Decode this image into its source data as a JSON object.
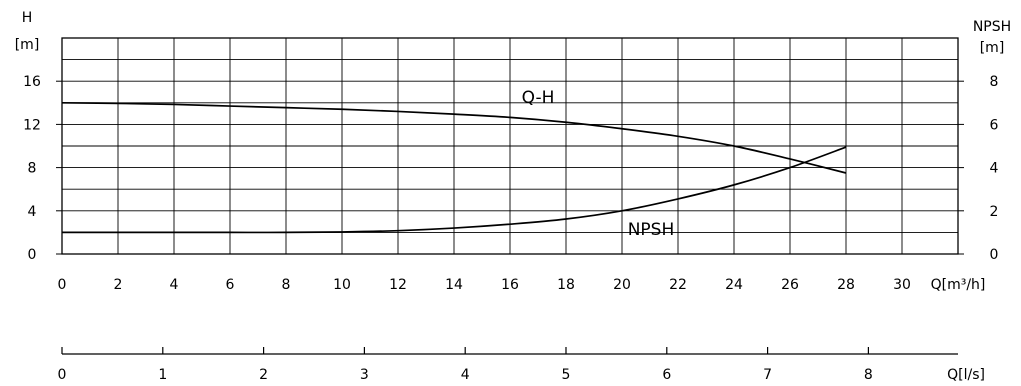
{
  "chart_data": {
    "type": "line",
    "left_axis": {
      "label_line1": "H",
      "label_line2": "[m]",
      "ticks": [
        0,
        4,
        8,
        12,
        16
      ],
      "ylim": [
        0,
        20
      ]
    },
    "right_axis": {
      "label_line1": "NPSH",
      "label_line2": "[m]",
      "ticks": [
        0,
        2,
        4,
        6,
        8
      ],
      "ylim": [
        0,
        10
      ]
    },
    "x_axis": {
      "label": "Q[m³/h]",
      "ticks": [
        0,
        2,
        4,
        6,
        8,
        10,
        12,
        14,
        16,
        18,
        20,
        22,
        24,
        26,
        28,
        30
      ],
      "xlim": [
        0,
        32
      ]
    },
    "secondary_x_axis": {
      "label": "Q[l/s]",
      "ticks": [
        0,
        1,
        2,
        3,
        4,
        5,
        6,
        7,
        8
      ],
      "xlim": [
        0,
        8.889
      ]
    },
    "grid": true,
    "series": [
      {
        "name": "Q-H",
        "axis": "left",
        "x": [
          0,
          2,
          4,
          6,
          8,
          10,
          12,
          14,
          16,
          18,
          20,
          22,
          24,
          26,
          28
        ],
        "y": [
          14.0,
          13.95,
          13.85,
          13.7,
          13.55,
          13.4,
          13.2,
          12.95,
          12.65,
          12.2,
          11.6,
          10.9,
          10.0,
          8.8,
          7.5
        ]
      },
      {
        "name": "NPSH",
        "axis": "right",
        "x": [
          0,
          2,
          4,
          6,
          8,
          10,
          12,
          14,
          16,
          18,
          20,
          22,
          24,
          26,
          28
        ],
        "y": [
          1.0,
          1.0,
          1.0,
          1.0,
          1.0,
          1.02,
          1.08,
          1.2,
          1.38,
          1.62,
          2.0,
          2.55,
          3.2,
          4.0,
          4.95
        ]
      }
    ]
  }
}
